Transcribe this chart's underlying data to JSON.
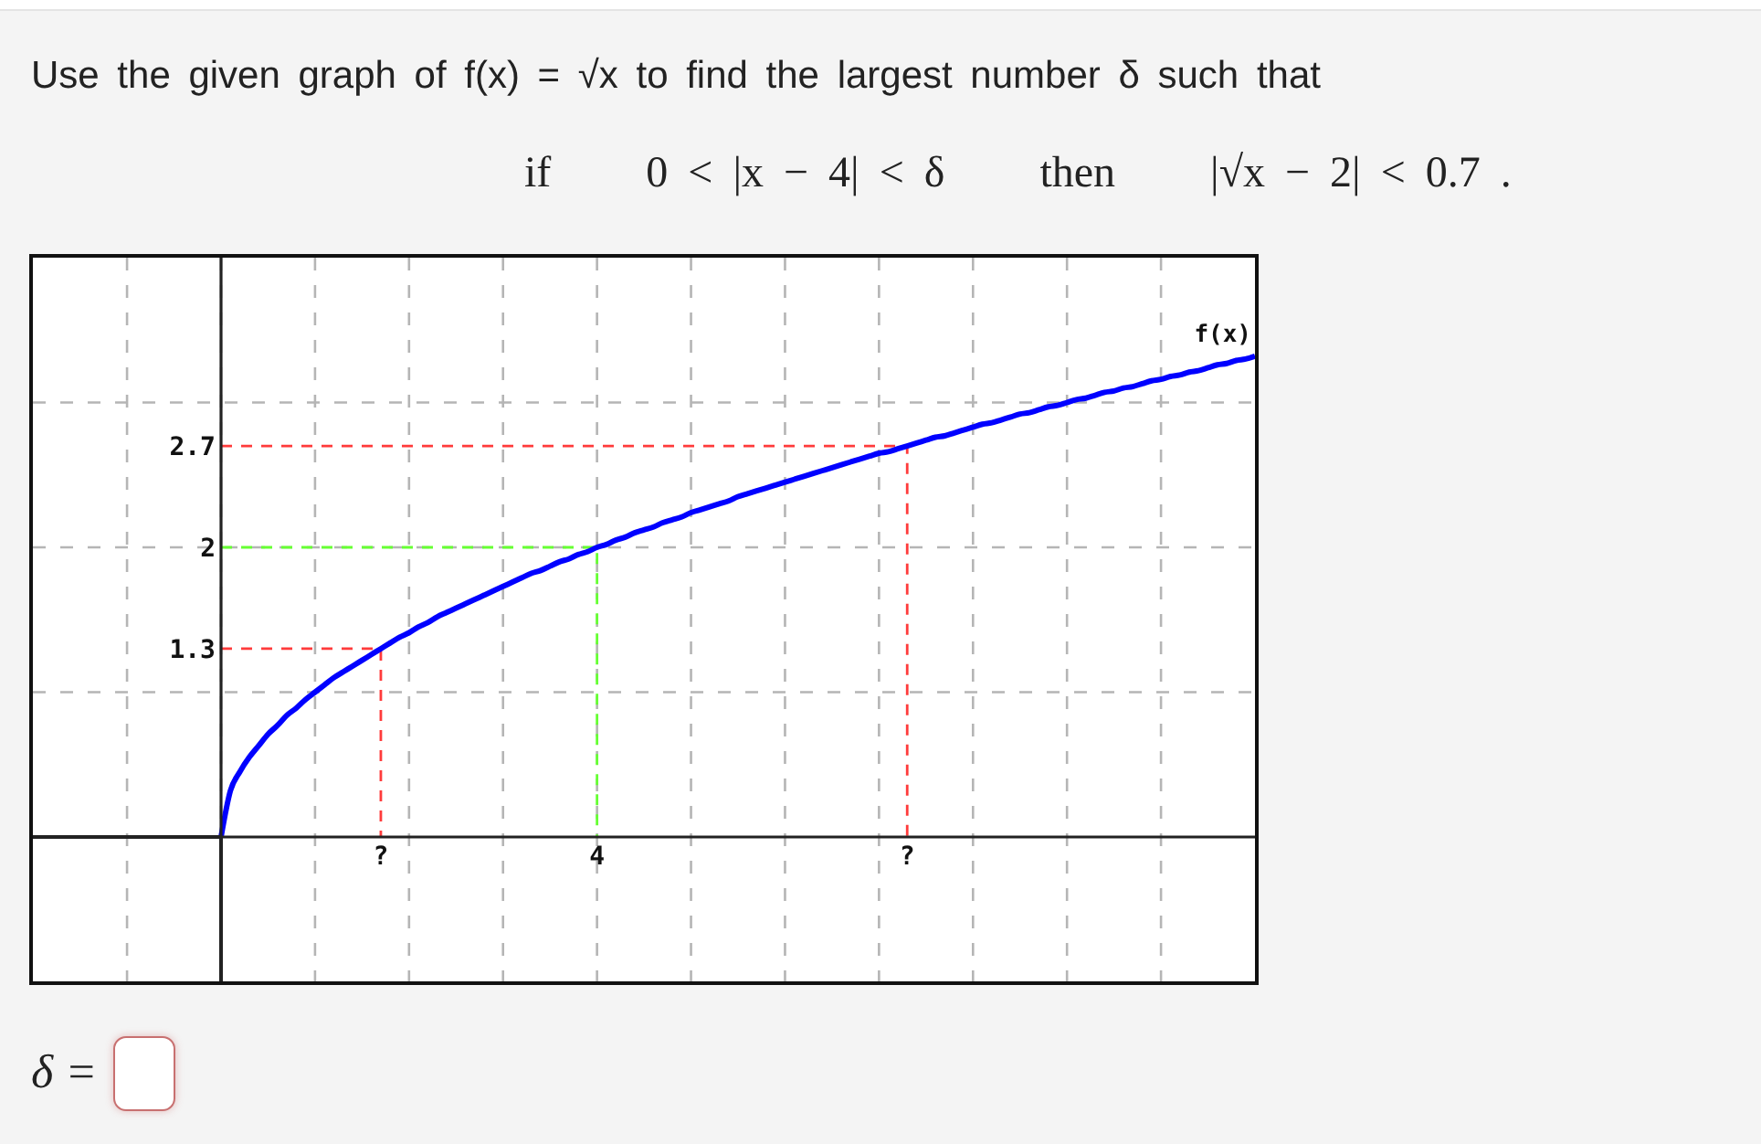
{
  "chart_data": {
    "type": "line",
    "title": "Use the given graph of f(x) = √x to find the largest number δ such that",
    "subtitle": "if   0 < |x − 4| < δ   then   |√x − 2| < 0.7 .",
    "categories": [
      null,
      null,
      null,
      null,
      null,
      null,
      null,
      null,
      null,
      null,
      null,
      null,
      null,
      null,
      null,
      null,
      null,
      "?",
      null,
      null,
      null,
      null,
      null,
      null,
      null,
      null,
      null,
      null,
      null,
      null,
      null,
      null,
      null,
      null,
      null,
      null,
      null,
      null,
      null,
      null,
      "4",
      null,
      null,
      null,
      null,
      null,
      null,
      null,
      null,
      null,
      null,
      null,
      null,
      null,
      null,
      null,
      null,
      null,
      null,
      null,
      null,
      null,
      null,
      null,
      null,
      null,
      null,
      null,
      null,
      null,
      null,
      null,
      null,
      "?",
      null,
      null,
      null,
      null,
      null,
      null,
      null,
      null,
      null,
      null,
      null,
      null,
      null,
      null,
      null,
      null,
      null,
      null,
      null,
      null,
      null,
      null,
      null,
      null,
      null,
      null,
      null,
      null,
      null,
      null,
      null,
      null,
      null,
      null,
      null,
      null,
      null
    ],
    "ylim": [
      0,
      4
    ],
    "yticks": [
      {
        "value": 1,
        "label": null
      },
      1.3,
      2,
      2.7,
      {
        "value": 3,
        "label": null
      }
    ],
    "grid": true,
    "marker": "none",
    "line_style": "solid",
    "series": [
      {
        "name": "f(x)",
        "color": "#0000ff",
        "values": [
          0,
          0.32,
          0.45,
          0.55,
          0.63,
          0.71,
          0.77,
          0.84,
          0.89,
          0.95,
          1,
          1.05,
          1.1,
          1.14,
          1.18,
          1.22,
          1.26,
          1.3,
          1.34,
          1.38,
          1.41,
          1.45,
          1.48,
          1.52,
          1.55,
          1.58,
          1.61,
          1.64,
          1.67,
          1.7,
          1.73,
          1.76,
          1.79,
          1.82,
          1.84,
          1.87,
          1.9,
          1.92,
          1.95,
          1.97,
          2,
          2.02,
          2.05,
          2.07,
          2.1,
          2.12,
          2.14,
          2.17,
          2.19,
          2.21,
          2.24,
          2.26,
          2.28,
          2.3,
          2.32,
          2.35,
          2.37,
          2.39,
          2.41,
          2.43,
          2.45,
          2.47,
          2.49,
          2.51,
          2.53,
          2.55,
          2.57,
          2.59,
          2.61,
          2.63,
          2.65,
          2.66,
          2.68,
          2.7,
          2.72,
          2.74,
          2.76,
          2.77,
          2.79,
          2.81,
          2.83,
          2.85,
          2.86,
          2.88,
          2.9,
          2.92,
          2.93,
          2.95,
          2.97,
          2.98,
          3,
          3.02,
          3.03,
          3.05,
          3.07,
          3.08,
          3.1,
          3.11,
          3.13,
          3.15,
          3.16,
          3.18,
          3.19,
          3.21,
          3.22,
          3.24,
          3.26,
          3.27,
          3.29,
          3.3,
          3.32
        ]
      },
      {
        "type": "step",
        "color": "#ff3b3b",
        "line_style": "dashed",
        "values": [
          2.7,
          2.7,
          2.7,
          2.7,
          2.7,
          2.7,
          2.7,
          2.7,
          2.7,
          2.7,
          2.7,
          2.7,
          2.7,
          2.7,
          2.7,
          2.7,
          2.7,
          2.7,
          2.7,
          2.7,
          2.7,
          2.7,
          2.7,
          2.7,
          2.7,
          2.7,
          2.7,
          2.7,
          2.7,
          2.7,
          2.7,
          2.7,
          2.7,
          2.7,
          2.7,
          2.7,
          2.7,
          2.7,
          2.7,
          2.7,
          2.7,
          2.7,
          2.7,
          2.7,
          2.7,
          2.7,
          2.7,
          2.7,
          2.7,
          2.7,
          2.7,
          2.7,
          2.7,
          2.7,
          2.7,
          2.7,
          2.7,
          2.7,
          2.7,
          2.7,
          2.7,
          2.7,
          2.7,
          2.7,
          2.7,
          2.7,
          2.7,
          2.7,
          2.7,
          2.7,
          2.7,
          2.7,
          2.7,
          0,
          null,
          null,
          null,
          null,
          null,
          null,
          null,
          null,
          null,
          null,
          null,
          null,
          null,
          null,
          null,
          null,
          null,
          null,
          null,
          null,
          null,
          null,
          null,
          null,
          null,
          null,
          null,
          null,
          null,
          null,
          null,
          null,
          null,
          null,
          null,
          null,
          null
        ]
      },
      {
        "type": "step",
        "color": "#ff3b3b",
        "line_style": "dashed",
        "values": [
          1.3,
          1.3,
          1.3,
          1.3,
          1.3,
          1.3,
          1.3,
          1.3,
          1.3,
          1.3,
          1.3,
          1.3,
          1.3,
          1.3,
          1.3,
          1.3,
          1.3,
          0,
          null,
          null,
          null,
          null,
          null,
          null,
          null,
          null,
          null,
          null,
          null,
          null,
          null,
          null,
          null,
          null,
          null,
          null,
          null,
          null,
          null,
          null,
          null,
          null,
          null,
          null,
          null,
          null,
          null,
          null,
          null,
          null,
          null,
          null,
          null,
          null,
          null,
          null,
          null,
          null,
          null,
          null,
          null,
          null,
          null,
          null,
          null,
          null,
          null,
          null,
          null,
          null,
          null,
          null,
          null,
          null,
          null,
          null,
          null,
          null,
          null,
          null,
          null,
          null,
          null,
          null,
          null,
          null,
          null,
          null,
          null,
          null,
          null,
          null,
          null,
          null,
          null,
          null,
          null,
          null,
          null,
          null,
          null,
          null,
          null,
          null,
          null,
          null,
          null,
          null,
          null,
          null,
          null
        ]
      },
      {
        "type": "step",
        "color": "#66ff33",
        "line_style": "dashed",
        "values": [
          2,
          2,
          2,
          2,
          2,
          2,
          2,
          2,
          2,
          2,
          2,
          2,
          2,
          2,
          2,
          2,
          2,
          2,
          2,
          2,
          2,
          2,
          2,
          2,
          2,
          2,
          2,
          2,
          2,
          2,
          2,
          2,
          2,
          2,
          2,
          2,
          2,
          2,
          2,
          2,
          0,
          null,
          null,
          null,
          null,
          null,
          null,
          null,
          null,
          null,
          null,
          null,
          null,
          null,
          null,
          null,
          null,
          null,
          null,
          null,
          null,
          null,
          null,
          null,
          null,
          null,
          null,
          null,
          null,
          null,
          null,
          null,
          null,
          null,
          null,
          null,
          null,
          null,
          null,
          null,
          null,
          null,
          null,
          null,
          null,
          null,
          null,
          null,
          null,
          null,
          null,
          null,
          null,
          null,
          null,
          null,
          null,
          null,
          null,
          null,
          null,
          null,
          null,
          null,
          null,
          null,
          null,
          null,
          null,
          null,
          null
        ]
      }
    ],
    "annotations": [
      "δ ="
    ]
  }
}
